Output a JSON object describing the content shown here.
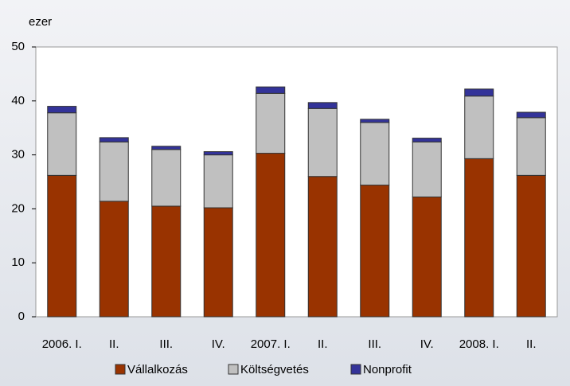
{
  "chart_data": {
    "type": "stacked_bar",
    "y_unit": "ezer",
    "categories": [
      "2006. I.",
      "II.",
      "III.",
      "IV.",
      "2007. I.",
      "II.",
      "III.",
      "IV.",
      "2008. I.",
      "II."
    ],
    "series": [
      {
        "name": "Vállalkozás",
        "color": "#993300",
        "values": [
          26.2,
          21.4,
          20.5,
          20.2,
          30.3,
          26.0,
          24.4,
          22.2,
          29.3,
          26.2
        ]
      },
      {
        "name": "Költségvetés",
        "color": "#c0c0c0",
        "values": [
          11.6,
          11.0,
          10.5,
          9.8,
          11.1,
          12.6,
          11.6,
          10.2,
          11.6,
          10.7
        ]
      },
      {
        "name": "Nonprofit",
        "color": "#333399",
        "values": [
          1.2,
          0.8,
          0.6,
          0.6,
          1.2,
          1.1,
          0.6,
          0.7,
          1.3,
          1.0
        ]
      }
    ],
    "ylim": [
      0,
      50
    ],
    "yticks": [
      0,
      10,
      20,
      30,
      40,
      50
    ],
    "legend": "bottom"
  }
}
